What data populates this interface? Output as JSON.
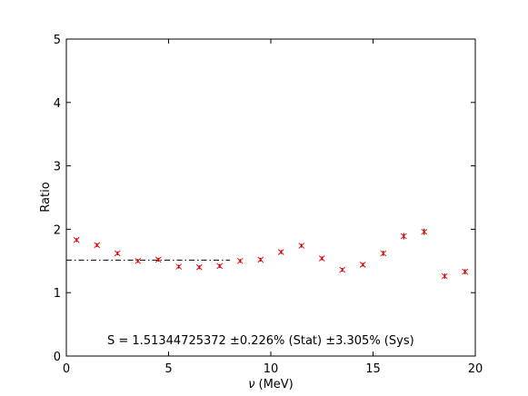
{
  "chart_data": {
    "type": "scatter",
    "xlabel_symbol": "ν",
    "xlabel_unit": "(MeV)",
    "ylabel": "Ratio",
    "xlim": [
      0,
      20
    ],
    "ylim": [
      0,
      5
    ],
    "xticks": [
      0,
      5,
      10,
      15,
      20
    ],
    "yticks": [
      0,
      1,
      2,
      3,
      4,
      5
    ],
    "grid": false,
    "marker": "x",
    "marker_color": "#ff0000",
    "errorbar_color": "#000000",
    "points": [
      {
        "x": 0.5,
        "y": 1.83,
        "err": 0.03
      },
      {
        "x": 1.5,
        "y": 1.75,
        "err": 0.03
      },
      {
        "x": 2.5,
        "y": 1.62,
        "err": 0.03
      },
      {
        "x": 3.5,
        "y": 1.5,
        "err": 0.03
      },
      {
        "x": 4.5,
        "y": 1.52,
        "err": 0.03
      },
      {
        "x": 5.5,
        "y": 1.41,
        "err": 0.03
      },
      {
        "x": 6.5,
        "y": 1.4,
        "err": 0.03
      },
      {
        "x": 7.5,
        "y": 1.42,
        "err": 0.03
      },
      {
        "x": 8.5,
        "y": 1.5,
        "err": 0.03
      },
      {
        "x": 9.5,
        "y": 1.52,
        "err": 0.03
      },
      {
        "x": 10.5,
        "y": 1.64,
        "err": 0.03
      },
      {
        "x": 11.5,
        "y": 1.74,
        "err": 0.03
      },
      {
        "x": 12.5,
        "y": 1.54,
        "err": 0.03
      },
      {
        "x": 13.5,
        "y": 1.36,
        "err": 0.03
      },
      {
        "x": 14.5,
        "y": 1.44,
        "err": 0.03
      },
      {
        "x": 15.5,
        "y": 1.62,
        "err": 0.04
      },
      {
        "x": 16.5,
        "y": 1.89,
        "err": 0.05
      },
      {
        "x": 17.5,
        "y": 1.96,
        "err": 0.05
      },
      {
        "x": 18.5,
        "y": 1.26,
        "err": 0.04
      },
      {
        "x": 19.5,
        "y": 1.33,
        "err": 0.04
      }
    ],
    "reference_line": {
      "y": 1.51344725372,
      "x_range": [
        0,
        8
      ],
      "style": "dash-dot",
      "color": "#000000"
    },
    "annotation": "S = 1.51344725372 ±0.226% (Stat)  ±3.305% (Sys)"
  }
}
